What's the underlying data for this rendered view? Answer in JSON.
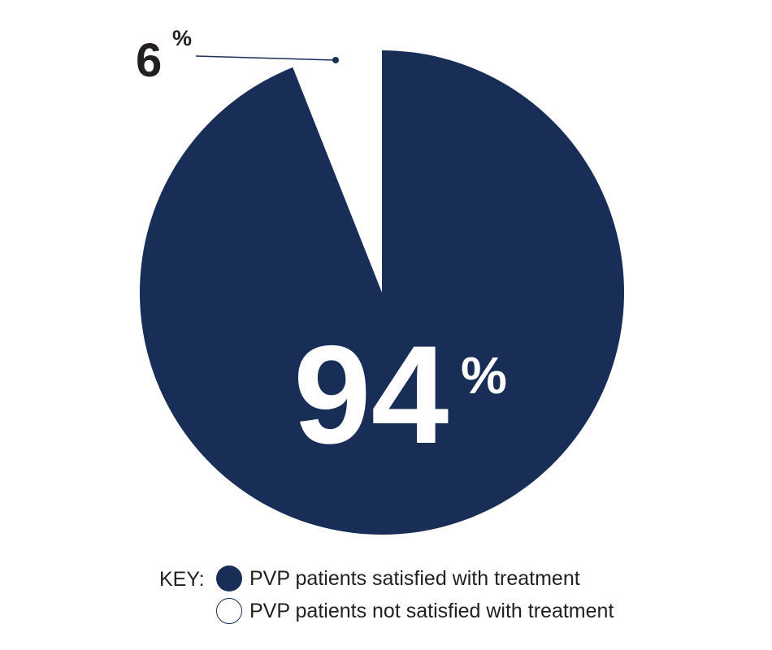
{
  "chart_data": {
    "type": "pie",
    "title": "",
    "slices": [
      {
        "label": "PVP patients satisfied with treatment",
        "value": 94,
        "display": "94",
        "unit": "%",
        "color": "#182e57"
      },
      {
        "label": "PVP patients not satisfied with treatment",
        "value": 6,
        "display": "6",
        "unit": "%",
        "color": "#ffffff"
      }
    ],
    "legend": {
      "title": "KEY:",
      "placement": "bottom"
    }
  }
}
